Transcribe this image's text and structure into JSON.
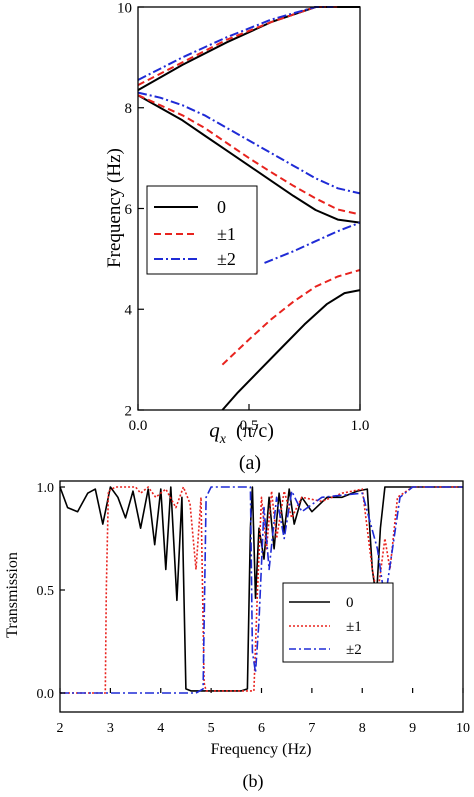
{
  "chart_data": [
    {
      "type": "line",
      "panel_label": "(a)",
      "xlabel": "q",
      "xlabel_sub": "x",
      "xlabel_unit": "(π/c)",
      "ylabel": "Frequency (Hz)",
      "xlim": [
        0,
        1
      ],
      "ylim": [
        2,
        10
      ],
      "xticks": [
        0.0,
        0.5,
        1.0
      ],
      "xtick_labels": [
        "0.0",
        "0.5",
        "1.0"
      ],
      "yticks": [
        2,
        4,
        6,
        8,
        10
      ],
      "ytick_labels": [
        "2",
        "4",
        "6",
        "8",
        "10"
      ],
      "grid": false,
      "legend_position": "middle-left",
      "series": [
        {
          "name": "0",
          "color": "#000000",
          "dash": "solid",
          "branches": [
            {
              "x": [
                0.0,
                0.2,
                0.4,
                0.6,
                0.8,
                0.95,
                1.0
              ],
              "y": [
                8.35,
                8.85,
                9.3,
                9.7,
                10.0,
                10.0,
                10.0
              ]
            },
            {
              "x": [
                0.0,
                0.1,
                0.2,
                0.3,
                0.4,
                0.5,
                0.6,
                0.7,
                0.8,
                0.9,
                1.0
              ],
              "y": [
                8.25,
                8.0,
                7.75,
                7.45,
                7.15,
                6.85,
                6.55,
                6.25,
                5.97,
                5.78,
                5.72
              ]
            },
            {
              "x": [
                0.38,
                0.45,
                0.55,
                0.65,
                0.75,
                0.85,
                0.93,
                1.0
              ],
              "y": [
                2.0,
                2.35,
                2.8,
                3.25,
                3.7,
                4.1,
                4.32,
                4.38
              ]
            }
          ]
        },
        {
          "name": "±1",
          "color": "#e8231e",
          "dash": "dashed",
          "branches": [
            {
              "x": [
                0.0,
                0.2,
                0.4,
                0.6,
                0.8,
                0.9
              ],
              "y": [
                8.45,
                8.9,
                9.35,
                9.7,
                10.0,
                10.0
              ]
            },
            {
              "x": [
                0.0,
                0.1,
                0.2,
                0.3,
                0.4,
                0.5,
                0.6,
                0.7,
                0.8,
                0.9,
                1.0
              ],
              "y": [
                8.25,
                8.05,
                7.85,
                7.6,
                7.3,
                7.0,
                6.72,
                6.45,
                6.2,
                5.98,
                5.88
              ]
            },
            {
              "x": [
                0.38,
                0.5,
                0.6,
                0.7,
                0.8,
                0.9,
                1.0
              ],
              "y": [
                2.9,
                3.4,
                3.8,
                4.15,
                4.45,
                4.65,
                4.78
              ]
            }
          ]
        },
        {
          "name": "±2",
          "color": "#1f2bd6",
          "dash": "dashdot",
          "branches": [
            {
              "x": [
                0.0,
                0.2,
                0.4,
                0.6,
                0.8,
                0.88
              ],
              "y": [
                8.55,
                9.0,
                9.4,
                9.75,
                10.0,
                10.0
              ]
            },
            {
              "x": [
                0.0,
                0.1,
                0.2,
                0.3,
                0.4,
                0.5,
                0.6,
                0.7,
                0.8,
                0.9,
                1.0
              ],
              "y": [
                8.3,
                8.2,
                8.05,
                7.85,
                7.6,
                7.35,
                7.1,
                6.85,
                6.6,
                6.4,
                6.3
              ]
            },
            {
              "x": [
                0.57,
                0.7,
                0.8,
                0.9,
                1.0
              ],
              "y": [
                4.92,
                5.15,
                5.35,
                5.55,
                5.72
              ]
            }
          ]
        }
      ]
    },
    {
      "type": "line",
      "panel_label": "(b)",
      "xlabel": "Frequency (Hz)",
      "ylabel": "Transmission",
      "xlim": [
        2,
        10
      ],
      "ylim": [
        0,
        1
      ],
      "xticks": [
        2,
        3,
        4,
        5,
        6,
        7,
        8,
        9,
        10
      ],
      "xtick_labels": [
        "2",
        "3",
        "4",
        "5",
        "6",
        "7",
        "8",
        "9",
        "10"
      ],
      "yticks": [
        0,
        0.5,
        1.0
      ],
      "ytick_labels": [
        "0.0",
        "0.5",
        "1.0"
      ],
      "grid": false,
      "legend_position": "lower-right",
      "series": [
        {
          "name": "0",
          "color": "#000000",
          "dash": "solid",
          "points": [
            [
              2.0,
              1.0
            ],
            [
              2.15,
              0.9
            ],
            [
              2.35,
              0.88
            ],
            [
              2.55,
              0.97
            ],
            [
              2.7,
              0.99
            ],
            [
              2.85,
              0.82
            ],
            [
              3.0,
              1.0
            ],
            [
              3.15,
              0.95
            ],
            [
              3.3,
              0.85
            ],
            [
              3.45,
              0.98
            ],
            [
              3.6,
              0.8
            ],
            [
              3.75,
              0.99
            ],
            [
              3.88,
              0.72
            ],
            [
              4.0,
              0.99
            ],
            [
              4.1,
              0.6
            ],
            [
              4.2,
              1.0
            ],
            [
              4.32,
              0.45
            ],
            [
              4.42,
              0.95
            ],
            [
              4.5,
              0.02
            ],
            [
              4.6,
              0.01
            ],
            [
              5.2,
              0.01
            ],
            [
              5.6,
              0.01
            ],
            [
              5.72,
              0.02
            ],
            [
              5.78,
              0.8
            ],
            [
              5.82,
              1.0
            ],
            [
              5.88,
              0.46
            ],
            [
              5.95,
              0.8
            ],
            [
              6.05,
              0.65
            ],
            [
              6.15,
              0.95
            ],
            [
              6.25,
              0.7
            ],
            [
              6.35,
              0.97
            ],
            [
              6.45,
              0.78
            ],
            [
              6.55,
              0.99
            ],
            [
              6.65,
              0.82
            ],
            [
              6.8,
              0.95
            ],
            [
              7.0,
              0.88
            ],
            [
              7.3,
              0.95
            ],
            [
              7.6,
              0.95
            ],
            [
              7.9,
              0.98
            ],
            [
              8.1,
              0.99
            ],
            [
              8.2,
              0.6
            ],
            [
              8.28,
              0.46
            ],
            [
              8.36,
              0.8
            ],
            [
              8.45,
              1.0
            ],
            [
              9.0,
              1.0
            ],
            [
              10.0,
              1.0
            ]
          ]
        },
        {
          "name": "±1",
          "color": "#e8231e",
          "dash": "dotted",
          "points": [
            [
              2.0,
              0.0
            ],
            [
              2.9,
              0.0
            ],
            [
              2.92,
              0.5
            ],
            [
              2.96,
              0.98
            ],
            [
              3.1,
              1.0
            ],
            [
              3.5,
              1.0
            ],
            [
              3.6,
              0.97
            ],
            [
              3.75,
              1.0
            ],
            [
              3.9,
              0.95
            ],
            [
              4.1,
              0.99
            ],
            [
              4.3,
              0.9
            ],
            [
              4.45,
              1.0
            ],
            [
              4.58,
              0.92
            ],
            [
              4.7,
              0.6
            ],
            [
              4.8,
              0.95
            ],
            [
              4.86,
              0.05
            ],
            [
              4.9,
              0.01
            ],
            [
              5.7,
              0.01
            ],
            [
              5.85,
              0.01
            ],
            [
              5.92,
              0.5
            ],
            [
              6.0,
              0.95
            ],
            [
              6.1,
              0.7
            ],
            [
              6.2,
              0.98
            ],
            [
              6.3,
              0.75
            ],
            [
              6.45,
              0.98
            ],
            [
              6.6,
              0.85
            ],
            [
              6.8,
              0.95
            ],
            [
              7.2,
              0.93
            ],
            [
              7.6,
              0.97
            ],
            [
              8.0,
              0.99
            ],
            [
              8.2,
              0.6
            ],
            [
              8.3,
              0.47
            ],
            [
              8.45,
              0.75
            ],
            [
              8.55,
              0.6
            ],
            [
              8.7,
              0.95
            ],
            [
              9.0,
              1.0
            ],
            [
              10.0,
              1.0
            ]
          ]
        },
        {
          "name": "±2",
          "color": "#1f2bd6",
          "dash": "dashdot",
          "points": [
            [
              2.0,
              0.0
            ],
            [
              4.55,
              0.0
            ],
            [
              4.7,
              0.0
            ],
            [
              4.84,
              0.02
            ],
            [
              4.9,
              0.95
            ],
            [
              5.0,
              1.0
            ],
            [
              5.5,
              1.0
            ],
            [
              5.78,
              1.0
            ],
            [
              5.82,
              0.2
            ],
            [
              5.88,
              0.1
            ],
            [
              5.95,
              0.35
            ],
            [
              6.05,
              0.9
            ],
            [
              6.15,
              0.6
            ],
            [
              6.3,
              0.95
            ],
            [
              6.45,
              0.75
            ],
            [
              6.6,
              0.98
            ],
            [
              6.8,
              0.88
            ],
            [
              7.2,
              0.95
            ],
            [
              7.6,
              0.96
            ],
            [
              8.0,
              0.97
            ],
            [
              8.3,
              0.7
            ],
            [
              8.45,
              0.45
            ],
            [
              8.6,
              0.7
            ],
            [
              8.75,
              0.95
            ],
            [
              9.0,
              1.0
            ],
            [
              10.0,
              1.0
            ]
          ]
        }
      ]
    }
  ]
}
